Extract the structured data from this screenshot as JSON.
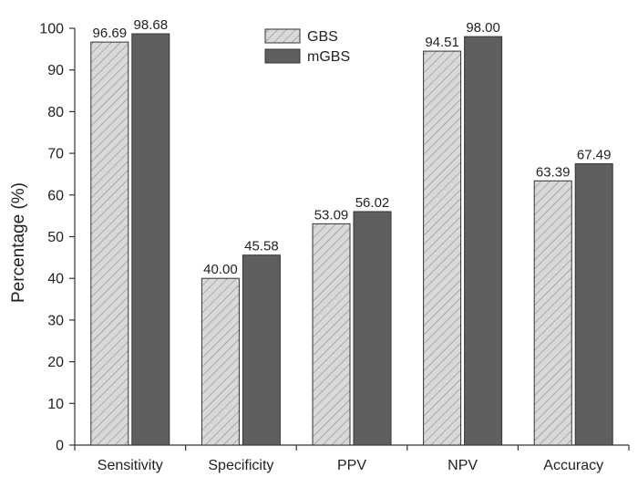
{
  "chart_data": {
    "type": "bar",
    "title": "",
    "xlabel": "",
    "ylabel": "Percentage (%)",
    "ylim": [
      0,
      100
    ],
    "yticks": [
      0,
      10,
      20,
      30,
      40,
      50,
      60,
      70,
      80,
      90,
      100
    ],
    "categories": [
      "Sensitivity",
      "Specificity",
      "PPV",
      "NPV",
      "Accuracy"
    ],
    "series": [
      {
        "name": "GBS",
        "values": [
          96.69,
          40.0,
          53.09,
          94.51,
          63.39
        ],
        "value_labels": [
          "96.69",
          "40.00",
          "53.09",
          "94.51",
          "63.39"
        ],
        "fill": "hatched",
        "color": "#d9d9d9"
      },
      {
        "name": "mGBS",
        "values": [
          98.68,
          45.58,
          56.02,
          98.0,
          67.49
        ],
        "value_labels": [
          "98.68",
          "45.58",
          "56.02",
          "98.00",
          "67.49"
        ],
        "fill": "solid",
        "color": "#5f5f5f"
      }
    ],
    "grid": false,
    "legend_position": "top-center",
    "data_labels": true
  }
}
